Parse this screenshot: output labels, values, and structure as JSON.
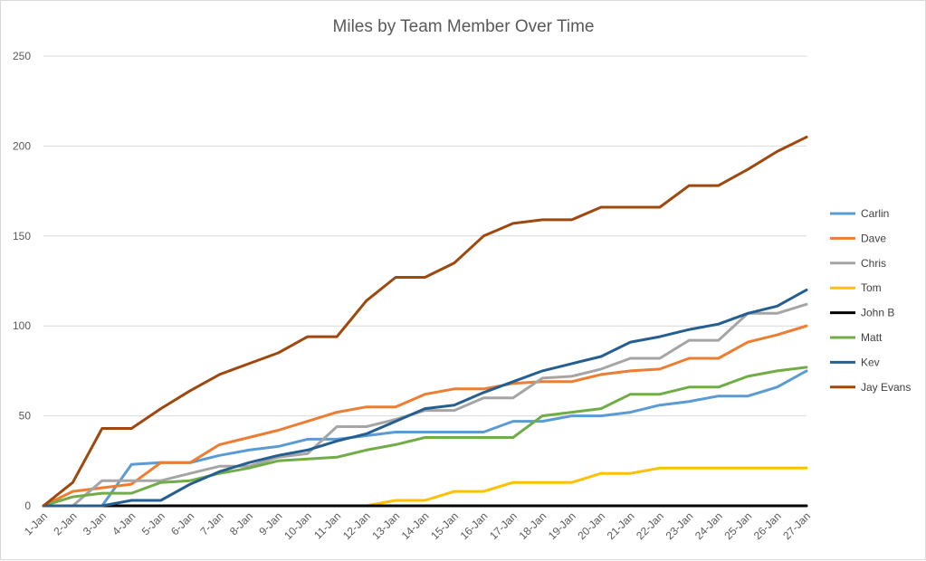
{
  "chart_data": {
    "type": "line",
    "title": "Miles by Team Member Over Time",
    "xlabel": "",
    "ylabel": "",
    "ylim": [
      0,
      250
    ],
    "yticks": [
      0,
      50,
      100,
      150,
      200,
      250
    ],
    "grid": true,
    "legend_position": "right",
    "categories": [
      "1-Jan",
      "2-Jan",
      "3-Jan",
      "4-Jan",
      "5-Jan",
      "6-Jan",
      "7-Jan",
      "8-Jan",
      "9-Jan",
      "10-Jan",
      "11-Jan",
      "12-Jan",
      "13-Jan",
      "14-Jan",
      "15-Jan",
      "16-Jan",
      "17-Jan",
      "18-Jan",
      "19-Jan",
      "20-Jan",
      "21-Jan",
      "22-Jan",
      "23-Jan",
      "24-Jan",
      "25-Jan",
      "26-Jan",
      "27-Jan"
    ],
    "series": [
      {
        "name": "Carlin",
        "color": "#5B9BD5",
        "values": [
          0,
          0,
          0,
          23,
          24,
          24,
          28,
          31,
          33,
          37,
          37,
          39,
          41,
          41,
          41,
          41,
          47,
          47,
          50,
          50,
          52,
          56,
          58,
          61,
          61,
          66,
          75
        ]
      },
      {
        "name": "Dave",
        "color": "#ED7D31",
        "values": [
          0,
          8,
          10,
          12,
          24,
          24,
          34,
          38,
          42,
          47,
          52,
          55,
          55,
          62,
          65,
          65,
          68,
          69,
          69,
          73,
          75,
          76,
          82,
          82,
          91,
          95,
          100
        ]
      },
      {
        "name": "Chris",
        "color": "#A5A5A5",
        "values": [
          0,
          0,
          14,
          14,
          14,
          18,
          22,
          22,
          27,
          29,
          44,
          44,
          48,
          53,
          53,
          60,
          60,
          71,
          72,
          76,
          82,
          82,
          92,
          92,
          107,
          107,
          112
        ]
      },
      {
        "name": "Tom",
        "color": "#FFC000",
        "values": [
          0,
          0,
          0,
          0,
          0,
          0,
          0,
          0,
          0,
          0,
          0,
          0,
          3,
          3,
          8,
          8,
          13,
          13,
          13,
          18,
          18,
          21,
          21,
          21,
          21,
          21,
          21
        ]
      },
      {
        "name": "John B",
        "color": "#000000",
        "values": [
          0,
          0,
          0,
          0,
          0,
          0,
          0,
          0,
          0,
          0,
          0,
          0,
          0,
          0,
          0,
          0,
          0,
          0,
          0,
          0,
          0,
          0,
          0,
          0,
          0,
          0,
          0
        ]
      },
      {
        "name": "Matt",
        "color": "#70AD47",
        "values": [
          0,
          5,
          7,
          7,
          13,
          14,
          18,
          21,
          25,
          26,
          27,
          31,
          34,
          38,
          38,
          38,
          38,
          50,
          52,
          54,
          62,
          62,
          66,
          66,
          72,
          75,
          77
        ]
      },
      {
        "name": "Kev",
        "color": "#255E91",
        "values": [
          0,
          0,
          0,
          3,
          3,
          12,
          19,
          24,
          28,
          31,
          36,
          40,
          47,
          54,
          56,
          63,
          69,
          75,
          79,
          83,
          91,
          94,
          98,
          101,
          107,
          111,
          120
        ]
      },
      {
        "name": "Jay Evans",
        "color": "#9E480E",
        "values": [
          0,
          13,
          43,
          43,
          54,
          64,
          73,
          79,
          85,
          94,
          94,
          114,
          127,
          127,
          135,
          150,
          157,
          159,
          159,
          166,
          166,
          166,
          178,
          178,
          187,
          197,
          205
        ]
      }
    ]
  }
}
